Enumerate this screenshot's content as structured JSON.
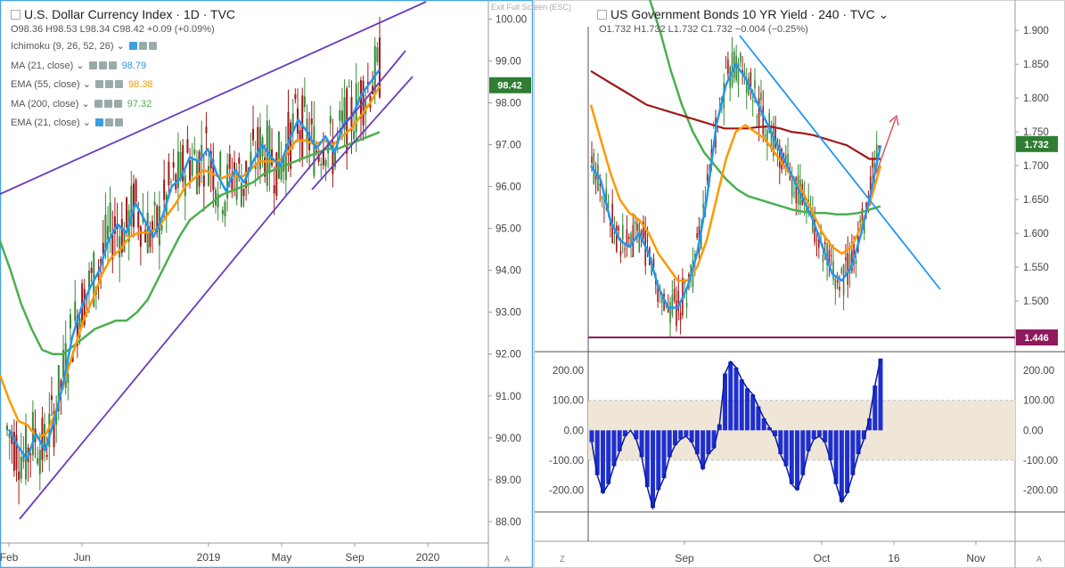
{
  "left_panel": {
    "title": "U.S. Dollar Currency Index · 1D · TVC",
    "ohlc": "O98.36  H98.53  L98.34  C98.42  +0.09 (+0.09%)",
    "indicators": [
      {
        "label": "Ichimoku (9, 26, 52, 26)",
        "value": "",
        "color": "#8a9aa8"
      },
      {
        "label": "MA (21, close)",
        "value": "98.79",
        "color": "#2196f3"
      },
      {
        "label": "EMA (55, close)",
        "value": "98.38",
        "color": "#ff9800"
      },
      {
        "label": "MA (200, close)",
        "value": "97.32",
        "color": "#4caf50"
      },
      {
        "label": "EMA (21, close)",
        "value": "",
        "color": "#8a9aa8"
      }
    ],
    "exit_full_screen": "Exit Full Screen (ESC)",
    "scale_mode": "A"
  },
  "right_panel": {
    "title": "US Government Bonds 10 YR Yield · 240 · TVC",
    "ohlc": "O1.732  H1.732  L1.732  C1.732  −0.004 (−0.25%)",
    "bottom_left": "Z",
    "scale_mode": "A"
  },
  "chart_data": [
    {
      "type": "line",
      "ylim": [
        87.7,
        100.2
      ],
      "yticks": [
        "100.00",
        "99.00",
        "98.00",
        "97.00",
        "96.00",
        "95.00",
        "94.00",
        "93.00",
        "92.00",
        "91.00",
        "90.00",
        "89.00",
        "88.00"
      ],
      "xticks": [
        "Feb",
        "Jun",
        "2019",
        "May",
        "Sep",
        "2020"
      ],
      "price_label": "98.42",
      "series": [
        {
          "color": "#2196f3",
          "values": [
            90.2,
            89.8,
            89.5,
            90.1,
            89.7,
            90.4,
            91.3,
            92.4,
            93.1,
            93.6,
            94.0,
            94.7,
            95.1,
            94.9,
            95.6,
            95.2,
            94.8,
            95.3,
            96.0,
            96.2,
            96.7,
            96.6,
            96.9,
            96.3,
            95.9,
            96.4,
            96.1,
            96.6,
            97.0,
            96.7,
            96.5,
            97.1,
            97.6,
            97.3,
            96.9,
            97.2,
            96.8,
            97.5,
            97.7,
            98.2,
            98.5,
            98.8
          ]
        },
        {
          "color": "#ff9800",
          "values": [
            91.5,
            90.9,
            90.4,
            90.3,
            90.0,
            90.1,
            90.6,
            91.4,
            92.1,
            92.8,
            93.3,
            93.9,
            94.3,
            94.5,
            94.8,
            94.9,
            94.9,
            95.0,
            95.3,
            95.6,
            96.0,
            96.2,
            96.4,
            96.3,
            96.2,
            96.3,
            96.2,
            96.4,
            96.6,
            96.6,
            96.6,
            96.8,
            97.1,
            97.1,
            97.0,
            97.1,
            97.0,
            97.2,
            97.4,
            97.7,
            98.0,
            98.4
          ]
        },
        {
          "color": "#4caf50",
          "values": [
            94.7,
            94.0,
            93.2,
            92.6,
            92.1,
            92.0,
            92.0,
            92.2,
            92.4,
            92.6,
            92.7,
            92.8,
            92.8,
            93.0,
            93.3,
            93.8,
            94.3,
            94.8,
            95.2,
            95.4,
            95.6,
            95.8,
            95.9,
            96.0,
            96.1,
            96.3,
            96.4,
            96.5,
            96.6,
            96.7,
            96.8,
            96.9,
            96.9,
            97.0,
            97.1,
            97.2,
            97.3
          ]
        },
        {
          "color": "#6a3cc0",
          "name": "trendlines",
          "values": []
        }
      ]
    },
    {
      "type": "line",
      "ylim": [
        1.425,
        1.945
      ],
      "yticks": [
        "1.900",
        "1.850",
        "1.800",
        "1.750",
        "1.700",
        "1.650",
        "1.600",
        "1.550",
        "1.500"
      ],
      "xticks": [
        "Sep",
        "Oct",
        "16",
        "Nov"
      ],
      "price_label": "1.732",
      "level_label": "1.446",
      "series": [
        {
          "color": "#2196f3",
          "values": [
            1.7,
            1.68,
            1.62,
            1.59,
            1.58,
            1.6,
            1.57,
            1.52,
            1.49,
            1.49,
            1.52,
            1.57,
            1.65,
            1.76,
            1.82,
            1.85,
            1.83,
            1.8,
            1.77,
            1.74,
            1.71,
            1.68,
            1.65,
            1.62,
            1.58,
            1.54,
            1.53,
            1.55,
            1.6,
            1.66,
            1.73
          ]
        },
        {
          "color": "#ff9800",
          "values": [
            1.79,
            1.74,
            1.69,
            1.65,
            1.63,
            1.62,
            1.6,
            1.57,
            1.55,
            1.53,
            1.53,
            1.55,
            1.59,
            1.65,
            1.71,
            1.75,
            1.76,
            1.75,
            1.74,
            1.72,
            1.7,
            1.68,
            1.66,
            1.63,
            1.6,
            1.58,
            1.57,
            1.58,
            1.61,
            1.65,
            1.7
          ]
        },
        {
          "color": "#a01818",
          "values": [
            1.84,
            1.83,
            1.82,
            1.81,
            1.8,
            1.79,
            1.785,
            1.78,
            1.775,
            1.77,
            1.765,
            1.76,
            1.755,
            1.755,
            1.755,
            1.757,
            1.758,
            1.755,
            1.75,
            1.748,
            1.745,
            1.74,
            1.735,
            1.73,
            1.72,
            1.71,
            1.71
          ]
        },
        {
          "color": "#4caf50",
          "values": [
            1.95,
            1.9,
            1.84,
            1.79,
            1.75,
            1.72,
            1.7,
            1.68,
            1.665,
            1.655,
            1.65,
            1.645,
            1.64,
            1.635,
            1.632,
            1.63,
            1.63,
            1.628,
            1.628,
            1.63,
            1.635,
            1.64
          ]
        }
      ]
    },
    {
      "type": "bar",
      "ylim": [
        -270,
        260
      ],
      "yticks": [
        "200.00",
        "100.00",
        "0.00",
        "-100.00",
        "-200.00"
      ],
      "band": [
        -100,
        100
      ],
      "series": [
        {
          "color": "#1e2fd0",
          "values": [
            -40,
            -150,
            -210,
            -180,
            -120,
            -70,
            -20,
            0,
            -30,
            -90,
            -190,
            -260,
            -200,
            -160,
            -90,
            -50,
            -30,
            -20,
            -40,
            -80,
            -130,
            -80,
            -60,
            20,
            190,
            230,
            210,
            170,
            140,
            120,
            80,
            40,
            10,
            -20,
            -80,
            -120,
            -180,
            -200,
            -150,
            -70,
            -30,
            -20,
            -40,
            -100,
            -180,
            -240,
            -210,
            -150,
            -80,
            -30,
            40,
            150,
            240
          ]
        }
      ]
    }
  ]
}
